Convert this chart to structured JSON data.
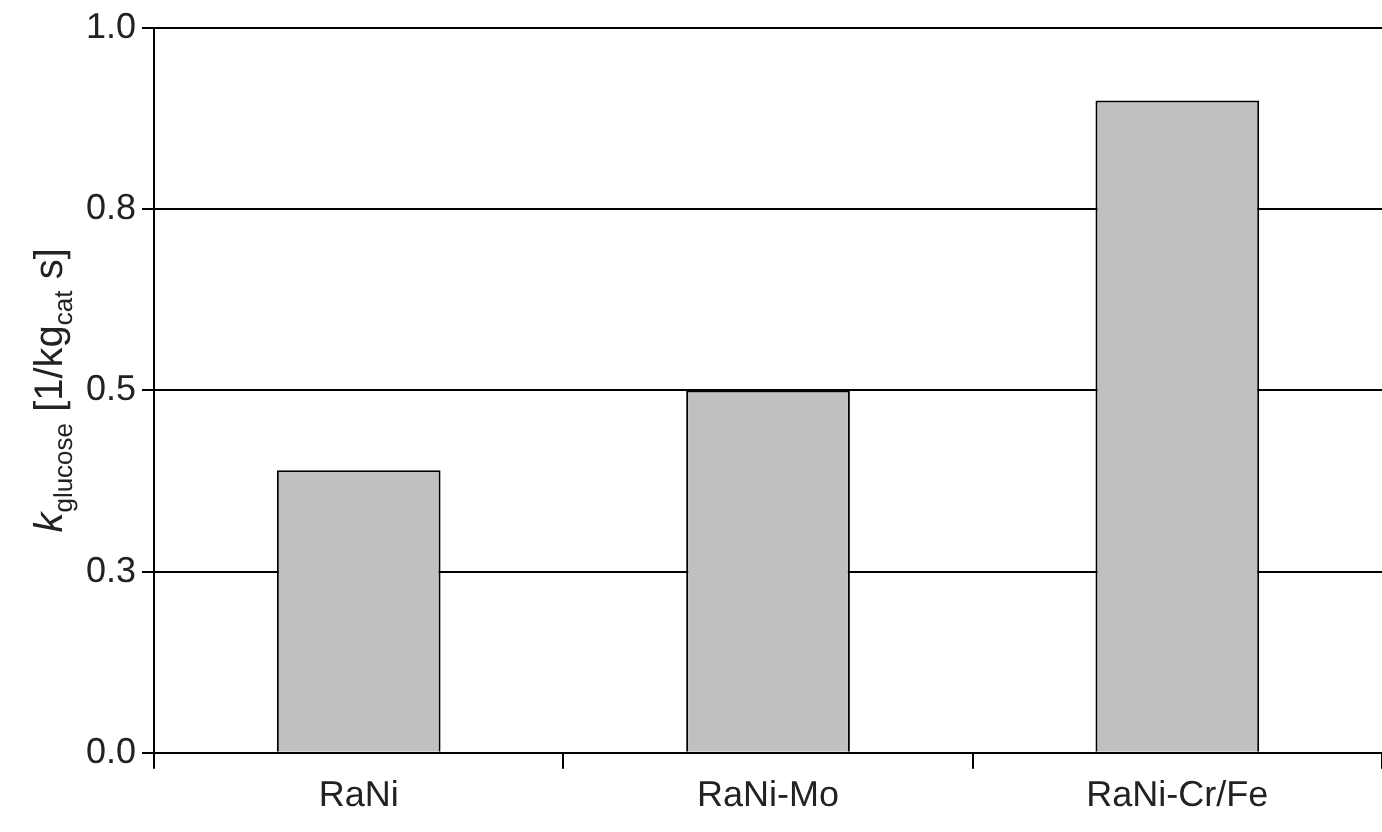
{
  "chart_data": {
    "type": "bar",
    "ylabel": "k$_{glucose}$ [1/kg$_{cat}$ s]",
    "categories": [
      "RaNi",
      "RaNi-Mo",
      "RaNi-Cr/Fe"
    ],
    "values": [
      0.39,
      0.5,
      0.9
    ],
    "color": "#c0c0c0",
    "ylim": [
      0,
      1
    ],
    "yticks": [
      {
        "value": 0,
        "label": "0.0"
      },
      {
        "value": 0.25,
        "label": "0.3"
      },
      0.5,
      {
        "value": 0.75,
        "label": "0.8"
      },
      {
        "value": 1,
        "label": "1.0"
      }
    ],
    "grid": "y",
    "legend": false
  }
}
